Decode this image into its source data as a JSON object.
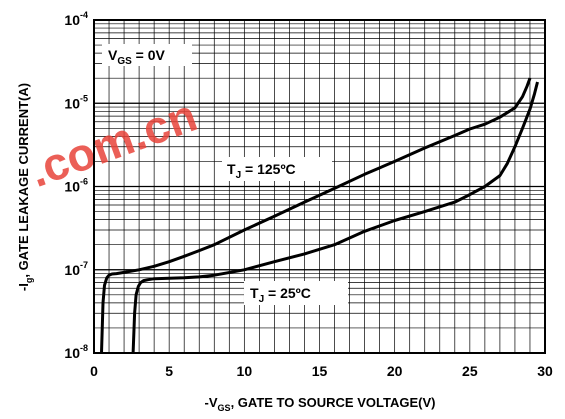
{
  "chart_data": {
    "type": "line",
    "title": "",
    "xlabel": "-VGS, GATE TO SOURCE VOLTAGE(V)",
    "ylabel": "-Ig, GATE LEAKAGE CURRENT(A)",
    "xlim": [
      0,
      30
    ],
    "ylim": [
      1e-08,
      0.0001
    ],
    "y_scale": "log",
    "grid": true,
    "x_ticks": [
      "0",
      "5",
      "10",
      "15",
      "20",
      "25",
      "30"
    ],
    "y_ticks": [
      {
        "value": 1e-08,
        "base": "10",
        "exp": "-8"
      },
      {
        "value": 1e-07,
        "base": "10",
        "exp": "-7"
      },
      {
        "value": 1e-06,
        "base": "10",
        "exp": "-6"
      },
      {
        "value": 1e-05,
        "base": "10",
        "exp": "-5"
      },
      {
        "value": 0.0001,
        "base": "10",
        "exp": "-4"
      }
    ],
    "condition_label": {
      "main": "V",
      "sub": "GS",
      "rest": " = 0V"
    },
    "series": [
      {
        "label": {
          "main": "T",
          "sub": "J",
          "rest": " = 125ºC"
        },
        "x": [
          0.5,
          0.6,
          0.7,
          0.85,
          1.0,
          1.2,
          1.5,
          2,
          3,
          4,
          5,
          6,
          7,
          8,
          10,
          12,
          14,
          16,
          18,
          20,
          22,
          24,
          25,
          26,
          27,
          28,
          28.5,
          28.8,
          29.0
        ],
        "y": [
          1e-08,
          4e-08,
          6.5e-08,
          8e-08,
          8.6e-08,
          8.9e-08,
          9e-08,
          9.3e-08,
          1e-07,
          1.1e-07,
          1.25e-07,
          1.45e-07,
          1.7e-07,
          2e-07,
          3e-07,
          4.4e-07,
          6.5e-07,
          9.5e-07,
          1.4e-06,
          2e-06,
          2.9e-06,
          4.1e-06,
          4.9e-06,
          5.6e-06,
          6.8e-06,
          8.8e-06,
          1.2e-05,
          1.6e-05,
          2e-05
        ]
      },
      {
        "label": {
          "main": "T",
          "sub": "J",
          "rest": " = 25ºC"
        },
        "x": [
          2.6,
          2.7,
          2.8,
          2.95,
          3.1,
          3.3,
          3.6,
          4,
          5,
          6,
          7,
          8,
          10,
          12,
          14,
          16,
          18,
          20,
          22,
          24,
          25,
          26,
          27,
          27.5,
          28,
          28.5,
          29.0,
          29.3,
          29.5
        ],
        "y": [
          1e-08,
          3e-08,
          5e-08,
          6.3e-08,
          7e-08,
          7.4e-08,
          7.6e-08,
          7.8e-08,
          7.9e-08,
          8e-08,
          8.2e-08,
          8.6e-08,
          1e-07,
          1.25e-07,
          1.55e-07,
          2e-07,
          2.9e-07,
          3.9e-07,
          5e-07,
          6.5e-07,
          8e-07,
          1e-06,
          1.35e-06,
          1.9e-06,
          3e-06,
          5e-06,
          8.5e-06,
          1.3e-05,
          1.8e-05
        ]
      }
    ]
  },
  "watermark": {
    "text": ".com.cn",
    "color": "#e8443a"
  }
}
